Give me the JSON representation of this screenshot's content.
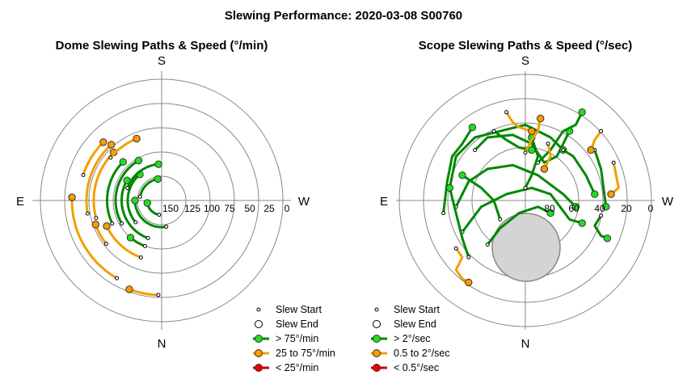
{
  "title": "Slewing Performance: 2020-03-08 S00760",
  "colors": {
    "fast": "#00b000",
    "fast_fill": "#22dd22",
    "medium": "#f0a000",
    "medium_fill": "#ff9a00",
    "slow": "#cc0000",
    "slow_fill": "#ee0000",
    "ring": "#888888",
    "obstruction": "#d4d4d4"
  },
  "chart_data": [
    {
      "type": "polar",
      "title": "Dome Slewing Paths & Speed (°/min)",
      "compass": {
        "top": "S",
        "bottom": "N",
        "left": "E",
        "right": "W"
      },
      "radial_ticks": [
        "150",
        "125",
        "100",
        "75",
        "50",
        "25",
        "0"
      ],
      "legend": [
        {
          "label": "Slew Start",
          "kind": "start"
        },
        {
          "label": "Slew End",
          "kind": "end"
        },
        {
          "label": "> 75°/min",
          "kind": "fast"
        },
        {
          "label": "25 to 75°/min",
          "kind": "medium"
        },
        {
          "label": "< 25°/min",
          "kind": "slow"
        }
      ],
      "paths": [
        {
          "speed": "medium",
          "r": 0.62,
          "a0": 190,
          "a1": 132
        },
        {
          "speed": "medium",
          "r": 0.56,
          "a0": 195,
          "a1": 135
        },
        {
          "speed": "medium",
          "r": 0.68,
          "a0": 162,
          "a1": 135
        },
        {
          "speed": "medium",
          "r": 0.74,
          "a0": 240,
          "a1": 178
        },
        {
          "speed": "medium",
          "r": 0.58,
          "a0": 218,
          "a1": 200
        },
        {
          "speed": "medium",
          "r": 0.5,
          "a0": 250,
          "a1": 205
        },
        {
          "speed": "medium",
          "r": 0.78,
          "a0": 268,
          "a1": 250
        },
        {
          "speed": "medium",
          "r": 0.55,
          "a0": 140,
          "a1": 112
        },
        {
          "speed": "fast",
          "r": 0.33,
          "a0": 250,
          "a1": 150
        },
        {
          "speed": "fast",
          "r": 0.28,
          "a0": 220,
          "a1": 130
        },
        {
          "speed": "fast",
          "r": 0.22,
          "a0": 280,
          "a1": 180
        },
        {
          "speed": "fast",
          "r": 0.38,
          "a0": 210,
          "a1": 120
        },
        {
          "speed": "fast",
          "r": 0.45,
          "a0": 205,
          "a1": 135
        },
        {
          "speed": "fast",
          "r": 0.18,
          "a0": 170,
          "a1": 100
        },
        {
          "speed": "fast",
          "r": 0.3,
          "a0": 160,
          "a1": 95
        },
        {
          "speed": "fast",
          "r": 0.12,
          "a0": 260,
          "a1": 190
        },
        {
          "speed": "fast",
          "r": 0.4,
          "a0": 250,
          "a1": 230
        }
      ]
    },
    {
      "type": "polar",
      "title": "Scope Slewing Paths & Speed (°/sec)",
      "compass": {
        "top": "S",
        "bottom": "N",
        "left": "E",
        "right": "W"
      },
      "radial_ticks": [
        "80",
        "60",
        "40",
        "20",
        "0"
      ],
      "legend": [
        {
          "label": "Slew Start",
          "kind": "start"
        },
        {
          "label": "Slew End",
          "kind": "end"
        },
        {
          "label": "> 2°/sec",
          "kind": "fast"
        },
        {
          "label": "0.5 to 2°/sec",
          "kind": "medium"
        },
        {
          "label": "< 0.5°/sec",
          "kind": "slow"
        }
      ],
      "paths": [
        {
          "speed": "fast",
          "pts": [
            [
              -0.4,
              -0.4
            ],
            [
              -0.3,
              -0.5
            ],
            [
              -0.1,
              -0.52
            ],
            [
              0.05,
              -0.45
            ],
            [
              0.15,
              -0.3
            ],
            [
              0.25,
              -0.35
            ],
            [
              0.35,
              -0.55
            ]
          ]
        },
        {
          "speed": "fast",
          "pts": [
            [
              -0.55,
              0.05
            ],
            [
              -0.45,
              -0.15
            ],
            [
              -0.3,
              -0.25
            ],
            [
              -0.1,
              -0.28
            ],
            [
              0.1,
              -0.2
            ],
            [
              0.3,
              -0.05
            ],
            [
              0.4,
              0.05
            ]
          ]
        },
        {
          "speed": "fast",
          "pts": [
            [
              -0.6,
              -0.1
            ],
            [
              -0.55,
              -0.35
            ],
            [
              -0.4,
              -0.5
            ],
            [
              -0.2,
              -0.55
            ],
            [
              0.0,
              -0.6
            ],
            [
              0.2,
              -0.5
            ],
            [
              0.3,
              -0.4
            ]
          ]
        },
        {
          "speed": "fast",
          "pts": [
            [
              -0.5,
              0.25
            ],
            [
              -0.35,
              0.05
            ],
            [
              -0.15,
              -0.05
            ],
            [
              0.05,
              -0.1
            ],
            [
              0.2,
              -0.05
            ],
            [
              0.35,
              0.15
            ],
            [
              0.45,
              0.18
            ]
          ]
        },
        {
          "speed": "fast",
          "pts": [
            [
              -0.65,
              0.1
            ],
            [
              -0.62,
              -0.15
            ],
            [
              -0.58,
              -0.35
            ],
            [
              -0.5,
              -0.45
            ],
            [
              -0.42,
              -0.58
            ]
          ]
        },
        {
          "speed": "fast",
          "pts": [
            [
              -0.45,
              0.45
            ],
            [
              -0.5,
              0.3
            ],
            [
              -0.55,
              0.1
            ],
            [
              -0.6,
              -0.1
            ]
          ]
        },
        {
          "speed": "fast",
          "pts": [
            [
              -0.2,
              0.15
            ],
            [
              -0.25,
              0.0
            ],
            [
              -0.35,
              -0.1
            ],
            [
              -0.5,
              -0.2
            ]
          ]
        },
        {
          "speed": "fast",
          "pts": [
            [
              0.1,
              -0.3
            ],
            [
              0.2,
              -0.4
            ],
            [
              0.3,
              -0.55
            ],
            [
              0.4,
              -0.6
            ],
            [
              0.45,
              -0.7
            ]
          ]
        },
        {
          "speed": "fast",
          "pts": [
            [
              0.55,
              -0.4
            ],
            [
              0.6,
              -0.25
            ],
            [
              0.62,
              -0.1
            ],
            [
              0.64,
              0.05
            ]
          ]
        },
        {
          "speed": "fast",
          "pts": [
            [
              0.3,
              -0.4
            ],
            [
              0.38,
              -0.35
            ],
            [
              0.48,
              -0.2
            ],
            [
              0.55,
              -0.05
            ]
          ]
        },
        {
          "speed": "fast",
          "pts": [
            [
              -0.3,
              0.35
            ],
            [
              -0.2,
              0.22
            ],
            [
              -0.05,
              0.1
            ],
            [
              0.1,
              0.05
            ],
            [
              0.2,
              0.1
            ]
          ]
        },
        {
          "speed": "fast",
          "pts": [
            [
              0.0,
              -0.1
            ],
            [
              0.05,
              -0.2
            ],
            [
              0.1,
              -0.35
            ],
            [
              0.05,
              -0.5
            ]
          ]
        },
        {
          "speed": "fast",
          "pts": [
            [
              -0.25,
              -0.55
            ],
            [
              -0.15,
              -0.48
            ],
            [
              -0.05,
              -0.42
            ],
            [
              0.05,
              -0.4
            ]
          ]
        },
        {
          "speed": "fast",
          "pts": [
            [
              0.6,
              0.12
            ],
            [
              0.55,
              0.2
            ],
            [
              0.6,
              0.28
            ],
            [
              0.65,
              0.3
            ]
          ]
        },
        {
          "speed": "medium",
          "pts": [
            [
              -0.55,
              0.38
            ],
            [
              -0.5,
              0.45
            ],
            [
              -0.55,
              0.55
            ],
            [
              -0.5,
              0.62
            ],
            [
              -0.45,
              0.65
            ]
          ]
        },
        {
          "speed": "medium",
          "pts": [
            [
              0.0,
              -0.38
            ],
            [
              0.05,
              -0.48
            ],
            [
              0.1,
              -0.55
            ],
            [
              0.12,
              -0.65
            ]
          ]
        },
        {
          "speed": "medium",
          "pts": [
            [
              -0.15,
              -0.7
            ],
            [
              -0.1,
              -0.62
            ],
            [
              -0.05,
              -0.58
            ],
            [
              0.05,
              -0.55
            ]
          ]
        },
        {
          "speed": "medium",
          "pts": [
            [
              0.7,
              -0.3
            ],
            [
              0.72,
              -0.2
            ],
            [
              0.74,
              -0.1
            ],
            [
              0.68,
              -0.05
            ]
          ]
        },
        {
          "speed": "medium",
          "pts": [
            [
              0.6,
              -0.55
            ],
            [
              0.55,
              -0.48
            ],
            [
              0.52,
              -0.4
            ]
          ]
        },
        {
          "speed": "medium",
          "pts": [
            [
              0.18,
              -0.45
            ],
            [
              0.2,
              -0.35
            ],
            [
              0.15,
              -0.25
            ]
          ]
        }
      ]
    }
  ]
}
